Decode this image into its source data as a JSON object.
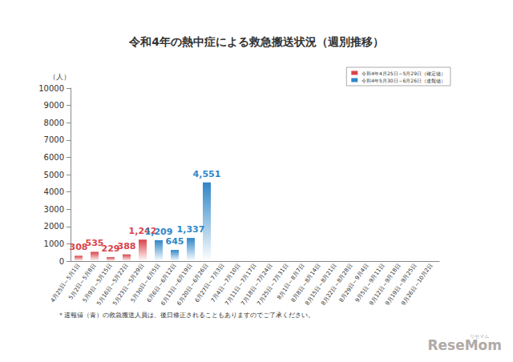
{
  "chart_data": {
    "type": "bar",
    "title": "令和4年の熱中症による救急搬送状況（週別推移）",
    "y_label": "（人）",
    "annotations": [
      "＊速報値（青）の救急搬送人員は、後日修正されることもありますのでご了承ください。",
      "リセマム",
      "ReseMom"
    ],
    "categories": [
      "4月25日～5月1日",
      "5月2日～5月8日",
      "5月9日～5月15日",
      "5月16日～5月22日",
      "5月23日～5月29日",
      "5月30日～6月5日",
      "6月6日～6月12日",
      "6月13日～6月19日",
      "6月20日～6月26日",
      "6月27日～7月3日",
      "7月4日～7月10日",
      "7月11日～7月17日",
      "7月18日～7月24日",
      "7月25日～7月31日",
      "8月1日～8月7日",
      "8月8日～8月14日",
      "8月15日～8月21日",
      "8月22日～8月28日",
      "8月29日～9月4日",
      "9月5日～9月11日",
      "9月12日～9月18日",
      "9月19日～9月25日",
      "9月26日～10月2日"
    ],
    "series": [
      {
        "name": "令和4年4月25日～5月29日（確定値）",
        "color": "#d9434a",
        "values": [
          308,
          535,
          229,
          388,
          1242,
          null,
          null,
          null,
          null,
          null,
          null,
          null,
          null,
          null,
          null,
          null,
          null,
          null,
          null,
          null,
          null,
          null,
          null
        ],
        "value_labels": [
          "308",
          "535",
          "229",
          "388",
          "1,242",
          null,
          null,
          null,
          null,
          null,
          null,
          null,
          null,
          null,
          null,
          null,
          null,
          null,
          null,
          null,
          null,
          null,
          null
        ]
      },
      {
        "name": "令和4年5月30日～6月26日（速報値）",
        "color": "#2f86c8",
        "values": [
          null,
          null,
          null,
          null,
          null,
          1209,
          645,
          1337,
          4551,
          null,
          null,
          null,
          null,
          null,
          null,
          null,
          null,
          null,
          null,
          null,
          null,
          null,
          null
        ],
        "value_labels": [
          null,
          null,
          null,
          null,
          null,
          "1,209",
          "645",
          "1,337",
          "4,551",
          null,
          null,
          null,
          null,
          null,
          null,
          null,
          null,
          null,
          null,
          null,
          null,
          null,
          null
        ]
      }
    ],
    "ylim": [
      0,
      10000
    ],
    "yticks": [
      0,
      1000,
      2000,
      3000,
      4000,
      5000,
      6000,
      7000,
      8000,
      9000,
      10000
    ],
    "grid": false,
    "legend": "upper right",
    "data_labels": true
  }
}
